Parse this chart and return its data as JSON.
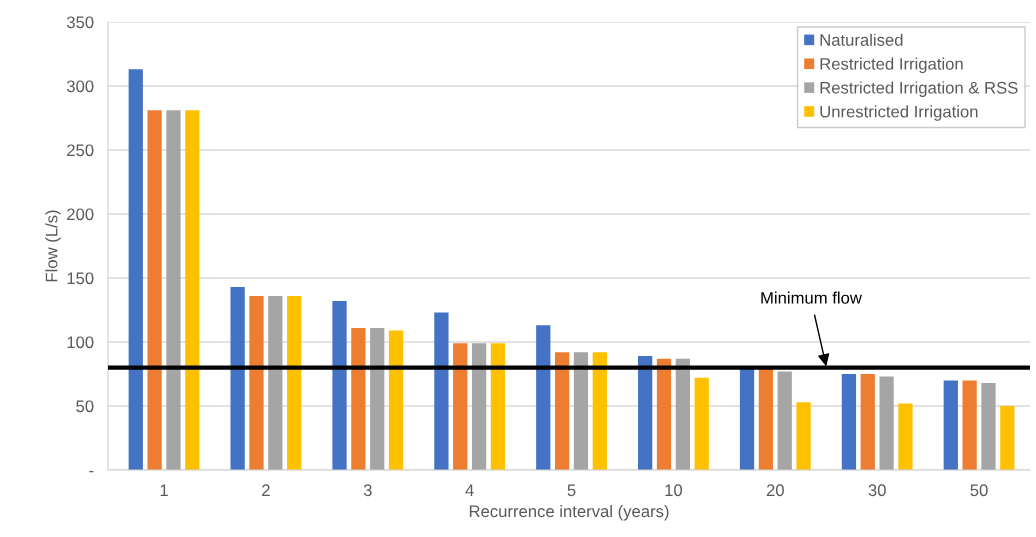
{
  "chart_data": {
    "type": "bar",
    "xlabel": "Recurrence interval (years)",
    "ylabel": "Flow (L/s)",
    "categories": [
      "1",
      "2",
      "3",
      "4",
      "5",
      "10",
      "20",
      "30",
      "50"
    ],
    "series": [
      {
        "name": "Naturalised",
        "color": "#4472c4",
        "values": [
          313,
          143,
          132,
          123,
          113,
          89,
          80,
          75,
          70
        ]
      },
      {
        "name": "Restricted Irrigation",
        "color": "#ed7d31",
        "values": [
          281,
          136,
          111,
          99,
          92,
          87,
          80,
          75,
          70
        ]
      },
      {
        "name": "Restricted Irrigation & RSS",
        "color": "#a5a5a5",
        "values": [
          281,
          136,
          111,
          99,
          92,
          87,
          77,
          73,
          68
        ]
      },
      {
        "name": "Unrestricted Irrigation",
        "color": "#ffc000",
        "values": [
          281,
          136,
          109,
          99,
          92,
          72,
          53,
          52,
          50
        ]
      }
    ],
    "ylim": [
      0,
      350
    ],
    "yticks": [
      {
        "value": 0,
        "label": "-"
      },
      50,
      100,
      150,
      200,
      250,
      300,
      350
    ],
    "ref_lines": [
      {
        "axis": "y",
        "value": 80,
        "label": "Minimum flow",
        "color": "#000000"
      }
    ],
    "grid": "y",
    "legend": "top right"
  }
}
